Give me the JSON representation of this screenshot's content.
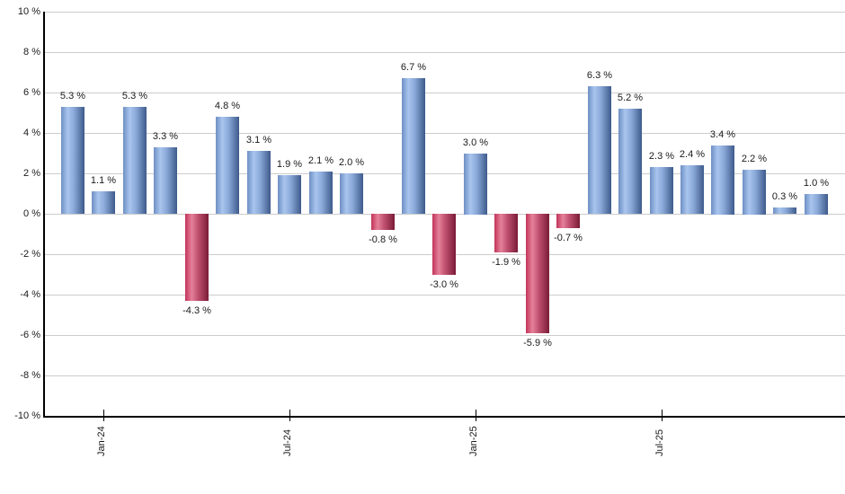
{
  "chart_data": {
    "type": "bar",
    "title": "",
    "unit": "%",
    "values": [
      5.3,
      1.1,
      5.3,
      3.3,
      -4.3,
      4.8,
      3.1,
      1.9,
      2.1,
      2.0,
      -0.8,
      6.7,
      -3.0,
      3.0,
      -1.9,
      -5.9,
      -0.7,
      6.3,
      5.2,
      2.3,
      2.4,
      3.4,
      2.2,
      0.3,
      1.0
    ],
    "bar_value_labels": [
      "5.3 %",
      "1.1 %",
      "5.3 %",
      "3.3 %",
      "-4.3 %",
      "4.8 %",
      "3.1 %",
      "1.9 %",
      "2.1 %",
      "2.0 %",
      "-0.8 %",
      "6.7 %",
      "-3.0 %",
      "3.0 %",
      "-1.9 %",
      "-5.9 %",
      "-0.7 %",
      "6.3 %",
      "5.2 %",
      "2.3 %",
      "2.4 %",
      "3.4 %",
      "2.2 %",
      "0.3 %",
      "1.0 %"
    ],
    "x_ticks": [
      {
        "index": 1,
        "label": "Jan-24"
      },
      {
        "index": 7,
        "label": "Jul-24"
      },
      {
        "index": 13,
        "label": "Jan-25"
      },
      {
        "index": 19,
        "label": "Jul-25"
      }
    ],
    "y_ticks": {
      "values": [
        10,
        8,
        6,
        4,
        2,
        0,
        -2,
        -4,
        -6,
        -8,
        -10
      ],
      "labels": [
        "10 %",
        "8 %",
        "6 %",
        "4 %",
        "2 %",
        "0 %",
        "-2 %",
        "-4 %",
        "-6 %",
        "-8 %",
        "-10 %"
      ]
    },
    "ylim": [
      -10,
      10
    ],
    "grid": true,
    "legend": "none",
    "colors": {
      "positive_bar": {
        "edge_left": "#6e8fc3",
        "highlight": "#a9c5ee",
        "mid": "#8aa8d8",
        "edge_right": "#3d5a8b"
      },
      "negative_bar": {
        "edge_left": "#c2345a",
        "highlight": "#e5819a",
        "mid": "#c05070",
        "edge_right": "#7a1c37"
      },
      "gridline": "#cccccc",
      "axis": "#000000",
      "text": "#1a1a1a",
      "background": "#ffffff"
    }
  }
}
